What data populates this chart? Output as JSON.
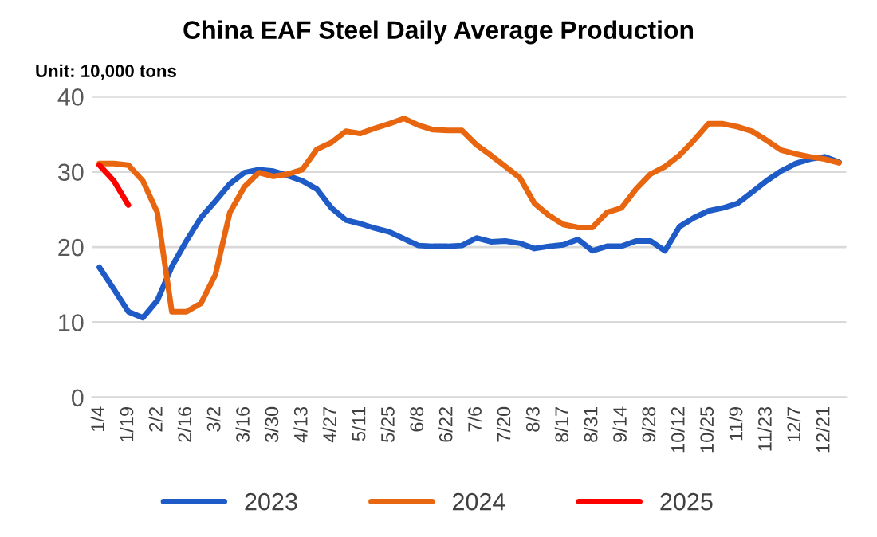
{
  "chart_data": {
    "type": "line",
    "title": "China EAF Steel Daily Average Production",
    "annotations": [
      "Unit: 10,000 tons"
    ],
    "categories": [
      "1/4",
      null,
      "1/19",
      null,
      "2/2",
      null,
      "2/16",
      null,
      "3/2",
      null,
      "3/16",
      null,
      "3/30",
      null,
      "4/13",
      null,
      "4/27",
      null,
      "5/11",
      null,
      "5/25",
      null,
      "6/8",
      null,
      "6/22",
      null,
      "7/6",
      null,
      "7/20",
      null,
      "8/3",
      null,
      "8/17",
      null,
      "8/31",
      null,
      "9/14",
      null,
      "9/28",
      null,
      "10/12",
      null,
      "10/25",
      null,
      "11/9",
      null,
      "11/23",
      null,
      "12/7",
      null,
      "12/21",
      null
    ],
    "series": [
      {
        "name": "2023",
        "color": "#1f5bc6",
        "values": [
          17.3,
          14.4,
          11.4,
          10.6,
          12.9,
          17.4,
          20.8,
          23.9,
          26.1,
          28.4,
          29.9,
          30.3,
          30.1,
          29.5,
          28.8,
          27.7,
          25.2,
          23.6,
          23.1,
          22.5,
          22.0,
          21.1,
          20.2,
          20.1,
          20.1,
          20.2,
          21.2,
          20.7,
          20.8,
          20.5,
          19.8,
          20.1,
          20.3,
          21.0,
          19.5,
          20.1,
          20.1,
          20.8,
          20.8,
          19.5,
          22.7,
          23.9,
          24.8,
          25.2,
          25.8,
          27.3,
          28.8,
          30.1,
          31.1,
          31.7,
          32.0,
          31.3
        ]
      },
      {
        "name": "2024",
        "color": "#e8660f",
        "values": [
          31.1,
          31.1,
          30.9,
          28.8,
          24.6,
          11.4,
          11.4,
          12.5,
          16.3,
          24.6,
          28.0,
          29.9,
          29.4,
          29.7,
          30.3,
          33.0,
          33.9,
          35.4,
          35.1,
          35.8,
          36.4,
          37.1,
          36.2,
          35.6,
          35.5,
          35.5,
          33.6,
          32.2,
          30.7,
          29.2,
          25.8,
          24.2,
          23.0,
          22.6,
          22.6,
          24.6,
          25.2,
          27.7,
          29.7,
          30.7,
          32.2,
          34.2,
          36.4,
          36.4,
          36.0,
          35.4,
          34.2,
          32.9,
          32.4,
          32.0,
          31.7,
          31.2
        ]
      },
      {
        "name": "2025",
        "color": "#ff0000",
        "values": [
          30.9,
          28.8,
          25.6,
          null,
          null,
          null,
          null,
          null,
          null,
          null,
          null,
          null,
          null,
          null,
          null,
          null,
          null,
          null,
          null,
          null,
          null,
          null,
          null,
          null,
          null,
          null,
          null,
          null,
          null,
          null,
          null,
          null,
          null,
          null,
          null,
          null,
          null,
          null,
          null,
          null,
          null,
          null,
          null,
          null,
          null,
          null,
          null,
          null,
          null,
          null,
          null,
          null
        ]
      }
    ],
    "ylim": [
      0,
      40
    ],
    "yticks": [
      0,
      10,
      20,
      30,
      40
    ],
    "grid": "y",
    "legend": "bottom",
    "marker": "none",
    "line_style": "solid"
  }
}
